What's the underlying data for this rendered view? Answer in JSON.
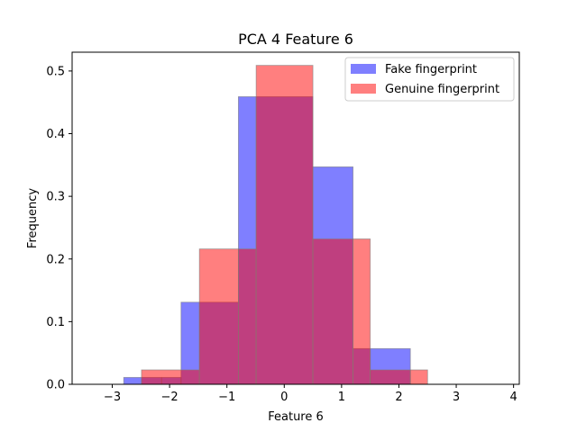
{
  "chart_data": {
    "type": "bar",
    "title": "PCA 4 Feature 6",
    "xlabel": "Feature 6",
    "ylabel": "Frequency",
    "xlim": [
      -3.7,
      4.1
    ],
    "ylim": [
      0,
      0.53
    ],
    "xticks": [
      -3,
      -2,
      -1,
      0,
      1,
      2,
      3,
      4
    ],
    "xtick_labels": [
      "−3",
      "−2",
      "−1",
      "0",
      "1",
      "2",
      "3",
      "4"
    ],
    "yticks": [
      0.0,
      0.1,
      0.2,
      0.3,
      0.4,
      0.5
    ],
    "ytick_labels": [
      "0.0",
      "0.1",
      "0.2",
      "0.3",
      "0.4",
      "0.5"
    ],
    "grid": false,
    "legend_position": "top-right",
    "series": [
      {
        "name": "Fake fingerprint",
        "color": "#0000ff",
        "opacity": 0.5,
        "bins": [
          [
            -2.8,
            -2.49,
            0.011
          ],
          [
            -2.49,
            -2.14,
            0.011
          ],
          [
            -2.14,
            -1.8,
            0.011
          ],
          [
            -1.8,
            -1.48,
            0.131
          ],
          [
            -1.48,
            -0.8,
            0.131
          ],
          [
            -0.8,
            -0.49,
            0.459
          ],
          [
            -0.49,
            0.5,
            0.459
          ],
          [
            0.5,
            1.2,
            0.347
          ],
          [
            1.2,
            1.5,
            0.057
          ],
          [
            1.5,
            2.2,
            0.057
          ]
        ]
      },
      {
        "name": "Genuine fingerprint",
        "color": "#ff0000",
        "opacity": 0.5,
        "bins": [
          [
            -2.49,
            -1.48,
            0.023
          ],
          [
            -1.48,
            -0.8,
            0.216
          ],
          [
            -0.8,
            -0.49,
            0.216
          ],
          [
            -0.49,
            0.5,
            0.509
          ],
          [
            0.5,
            1.2,
            0.232
          ],
          [
            1.2,
            1.5,
            0.232
          ],
          [
            1.5,
            2.2,
            0.023
          ],
          [
            2.2,
            2.5,
            0.023
          ]
        ]
      }
    ]
  }
}
